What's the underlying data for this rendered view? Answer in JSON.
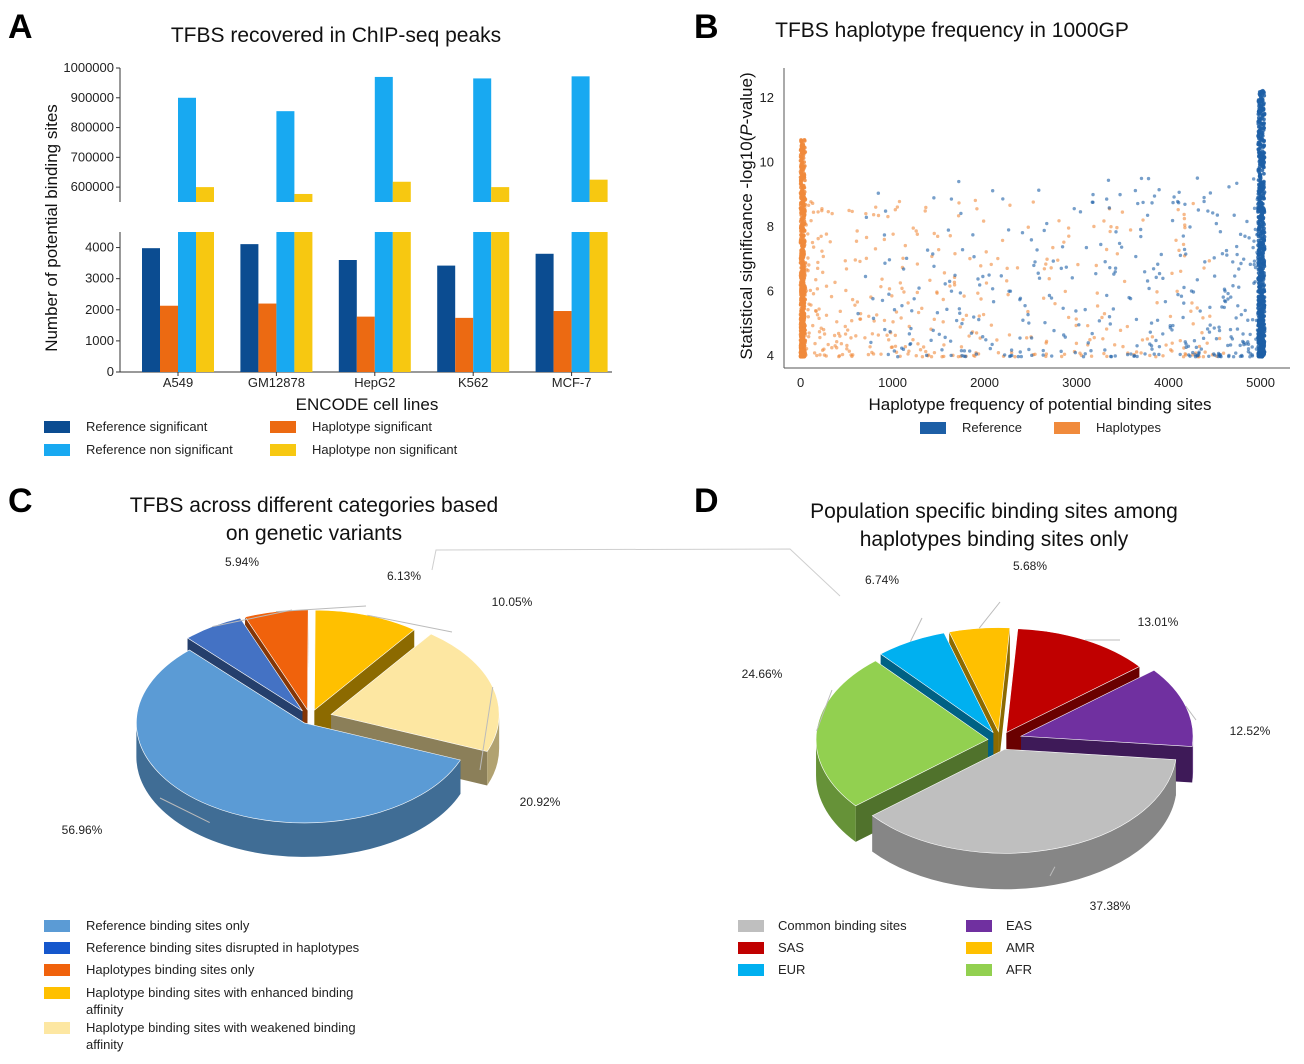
{
  "panels": {
    "a": {
      "label": "A"
    },
    "b": {
      "label": "B"
    },
    "c": {
      "label": "C"
    },
    "d": {
      "label": "D"
    }
  },
  "chart_data": [
    {
      "type": "bar",
      "title": "TFBS recovered in ChIP-seq peaks",
      "xlabel": "ENCODE cell lines",
      "ylabel": "Number of potential binding sites",
      "categories": [
        "A549",
        "GM12878",
        "HepG2",
        "K562",
        "MCF-7"
      ],
      "broken_axis": true,
      "ylim_upper": [
        550000,
        1000000
      ],
      "ylim_lower": [
        0,
        4500
      ],
      "upper_ticks": [
        "600000",
        "700000",
        "800000",
        "900000",
        "1000000"
      ],
      "lower_ticks": [
        "0",
        "1000",
        "2000",
        "3000",
        "4000"
      ],
      "series": [
        {
          "name": "Reference significant",
          "color": "#0b4c91",
          "values": [
            3980,
            4110,
            3600,
            3420,
            3800
          ]
        },
        {
          "name": "Haplotype significant",
          "color": "#ec6a12",
          "values": [
            2130,
            2200,
            1780,
            1740,
            1960
          ]
        },
        {
          "name": "Reference non significant",
          "color": "#18a9f1",
          "values": [
            900000,
            855000,
            970000,
            965000,
            972000
          ]
        },
        {
          "name": "Haplotype non significant",
          "color": "#f7c811",
          "values": [
            600000,
            577000,
            618000,
            600000,
            625000
          ]
        }
      ],
      "legend": [
        {
          "name": "Reference significant",
          "color": "#0b4c91"
        },
        {
          "name": "Haplotype significant",
          "color": "#ec6a12"
        },
        {
          "name": "Reference non significant",
          "color": "#18a9f1"
        },
        {
          "name": "Haplotype non significant",
          "color": "#f7c811"
        }
      ]
    },
    {
      "type": "scatter",
      "title": "TFBS haplotype frequency in 1000GP",
      "xlabel": "Haplotype frequency of potential binding sites",
      "ylabel_pre": "Statistical significance -log10(",
      "ylabel_italic": "P",
      "ylabel_post": "-value)",
      "xlim": [
        -180,
        5320
      ],
      "ylim": [
        3.6,
        12.9
      ],
      "xticks": [
        "0",
        "1000",
        "2000",
        "3000",
        "4000",
        "5000"
      ],
      "yticks": [
        "4",
        "6",
        "8",
        "10",
        "12"
      ],
      "series": [
        {
          "name": "Reference",
          "color": "#1d5fa6",
          "concentration": "high frequency, near 5008"
        },
        {
          "name": "Haplotypes",
          "color": "#f08a3c",
          "concentration": "low frequency, near 0"
        }
      ]
    },
    {
      "type": "pie",
      "title_line1": "TFBS across different categories based",
      "title_line2": "on genetic variants",
      "slices": [
        {
          "label": "Reference binding sites only",
          "value": 56.96,
          "pct": "56.96%",
          "color": "#5b9bd5"
        },
        {
          "label": "Reference binding sites disrupted in haplotypes",
          "value": 5.94,
          "pct": "5.94%",
          "color": "#4472c4"
        },
        {
          "label": "Haplotypes binding sites only",
          "value": 6.13,
          "pct": "6.13%",
          "color": "#f0620c"
        },
        {
          "label": "Haplotype binding sites with enhanced binding affinity",
          "value": 10.05,
          "pct": "10.05%",
          "color": "#ffc000"
        },
        {
          "label": "Haplotype binding sites with weakened binding affinity",
          "value": 20.92,
          "pct": "20.92%",
          "color": "#fde7a2"
        }
      ],
      "legend": [
        {
          "line1": "Reference binding sites only",
          "line2": "",
          "color": "#5b9bd5"
        },
        {
          "line1": "Reference binding sites disrupted in haplotypes",
          "line2": "",
          "color": "#1557cc"
        },
        {
          "line1": "Haplotypes binding sites only",
          "line2": "",
          "color": "#f0620c"
        },
        {
          "line1": "Haplotype binding sites with enhanced binding",
          "line2": "affinity",
          "color": "#ffc000"
        },
        {
          "line1": "Haplotype binding sites with weakened binding",
          "line2": "affinity",
          "color": "#fde7a2"
        }
      ]
    },
    {
      "type": "pie",
      "title_line1": "Population specific binding sites among",
      "title_line2": "haplotypes binding sites only",
      "slices": [
        {
          "label": "Common binding sites",
          "value": 37.38,
          "pct": "37.38%",
          "color": "#bfbfbf"
        },
        {
          "label": "AFR",
          "value": 24.66,
          "pct": "24.66%",
          "color": "#92d050"
        },
        {
          "label": "EUR",
          "value": 6.74,
          "pct": "6.74%",
          "color": "#00b0f0"
        },
        {
          "label": "AMR",
          "value": 5.68,
          "pct": "5.68%",
          "color": "#ffc000"
        },
        {
          "label": "SAS",
          "value": 13.01,
          "pct": "13.01%",
          "color": "#c00000"
        },
        {
          "label": "EAS",
          "value": 12.52,
          "pct": "12.52%",
          "color": "#7030a0"
        }
      ],
      "legend": [
        {
          "name": "Common binding sites",
          "color": "#bfbfbf"
        },
        {
          "name": "SAS",
          "color": "#c00000"
        },
        {
          "name": "EUR",
          "color": "#00b0f0"
        },
        {
          "name": "EAS",
          "color": "#7030a0"
        },
        {
          "name": "AMR",
          "color": "#ffc000"
        },
        {
          "name": "AFR",
          "color": "#92d050"
        }
      ]
    }
  ]
}
